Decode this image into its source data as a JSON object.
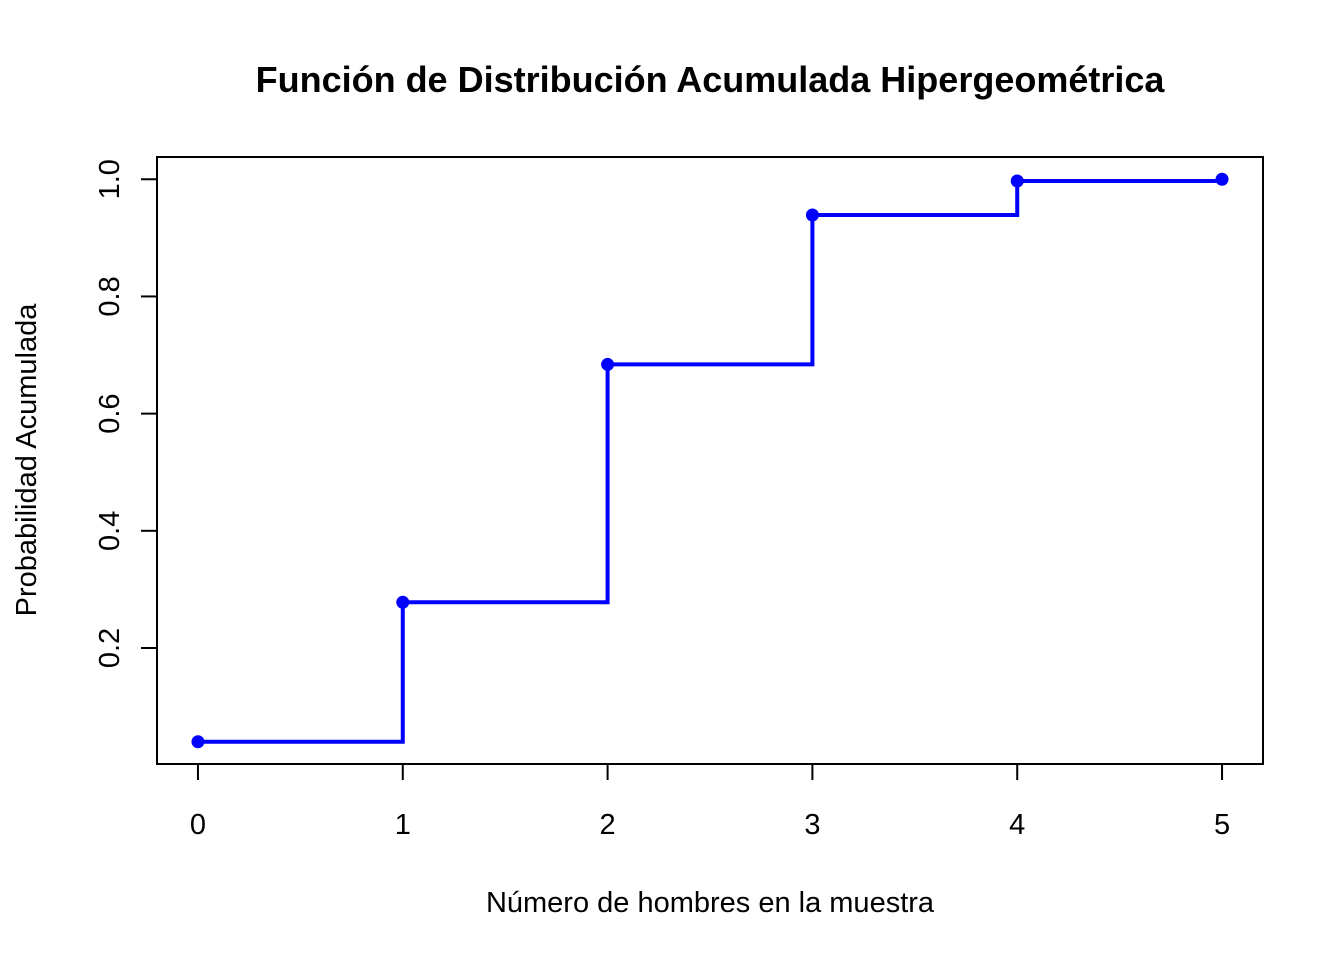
{
  "chart_data": {
    "type": "line",
    "step": true,
    "title": "Función de Distribución Acumulada Hipergeométrica",
    "xlabel": "Número de hombres en la muestra",
    "ylabel": "Probabilidad Acumulada",
    "x": [
      0,
      1,
      2,
      3,
      4,
      5
    ],
    "y": [
      0.04,
      0.278,
      0.684,
      0.939,
      0.997,
      1.0
    ],
    "xlim": [
      -0.2,
      5.2
    ],
    "ylim": [
      0.002,
      1.038
    ],
    "xticks": [
      "0",
      "1",
      "2",
      "3",
      "4",
      "5"
    ],
    "yticks": [
      "0.2",
      "0.4",
      "0.6",
      "0.8",
      "1.0"
    ],
    "grid": false,
    "color": "#0000ff"
  }
}
